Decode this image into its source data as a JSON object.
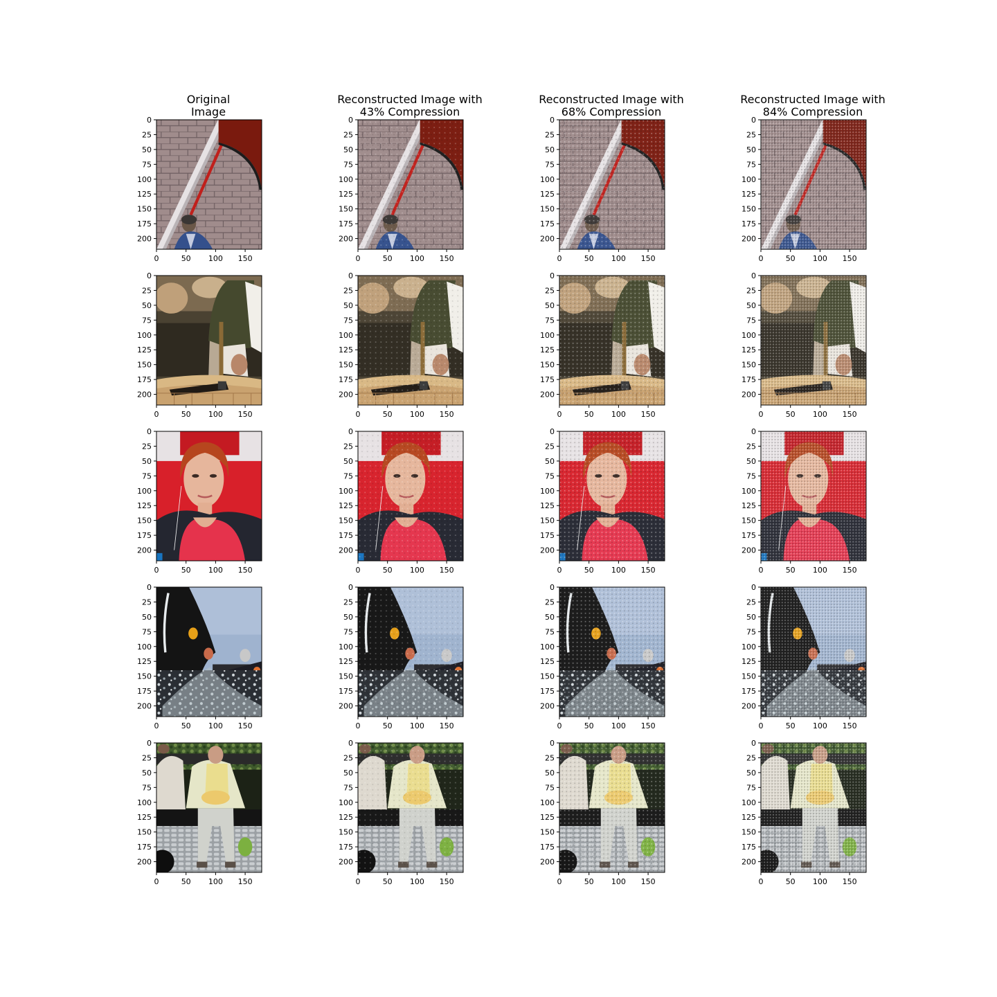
{
  "figure": {
    "columns": [
      {
        "title_lines": [
          "Original",
          "Image"
        ]
      },
      {
        "title_lines": [
          "Reconstructed Image with",
          "43% Compression"
        ]
      },
      {
        "title_lines": [
          "Reconstructed Image with",
          "68% Compression"
        ]
      },
      {
        "title_lines": [
          "Reconstructed Image with",
          "84% Compression"
        ]
      }
    ],
    "rows": [
      {
        "scene": "street with paved stones, white line, red umbrella edge, man in blue shirt at bottom"
      },
      {
        "scene": "man in dark vest and white shirt holding wooden-handled hammer over tree stump"
      },
      {
        "scene": "red-haired woman in red top with earphones and backpack straps"
      },
      {
        "scene": "person in dark clothing with water splash and crowd, blue sky"
      },
      {
        "scene": "elderly woman in light jacket sitting on bench on cobblestone pavement"
      }
    ]
  },
  "chart_data": {
    "type": "image_grid",
    "xlim": [
      0,
      178
    ],
    "ylim": [
      218,
      0
    ],
    "x_ticks": [
      "0",
      "50",
      "100",
      "150"
    ],
    "y_ticks": [
      "0",
      "25",
      "50",
      "75",
      "100",
      "125",
      "150",
      "175",
      "200"
    ],
    "compression_levels_percent": [
      0,
      43,
      68,
      84
    ]
  }
}
